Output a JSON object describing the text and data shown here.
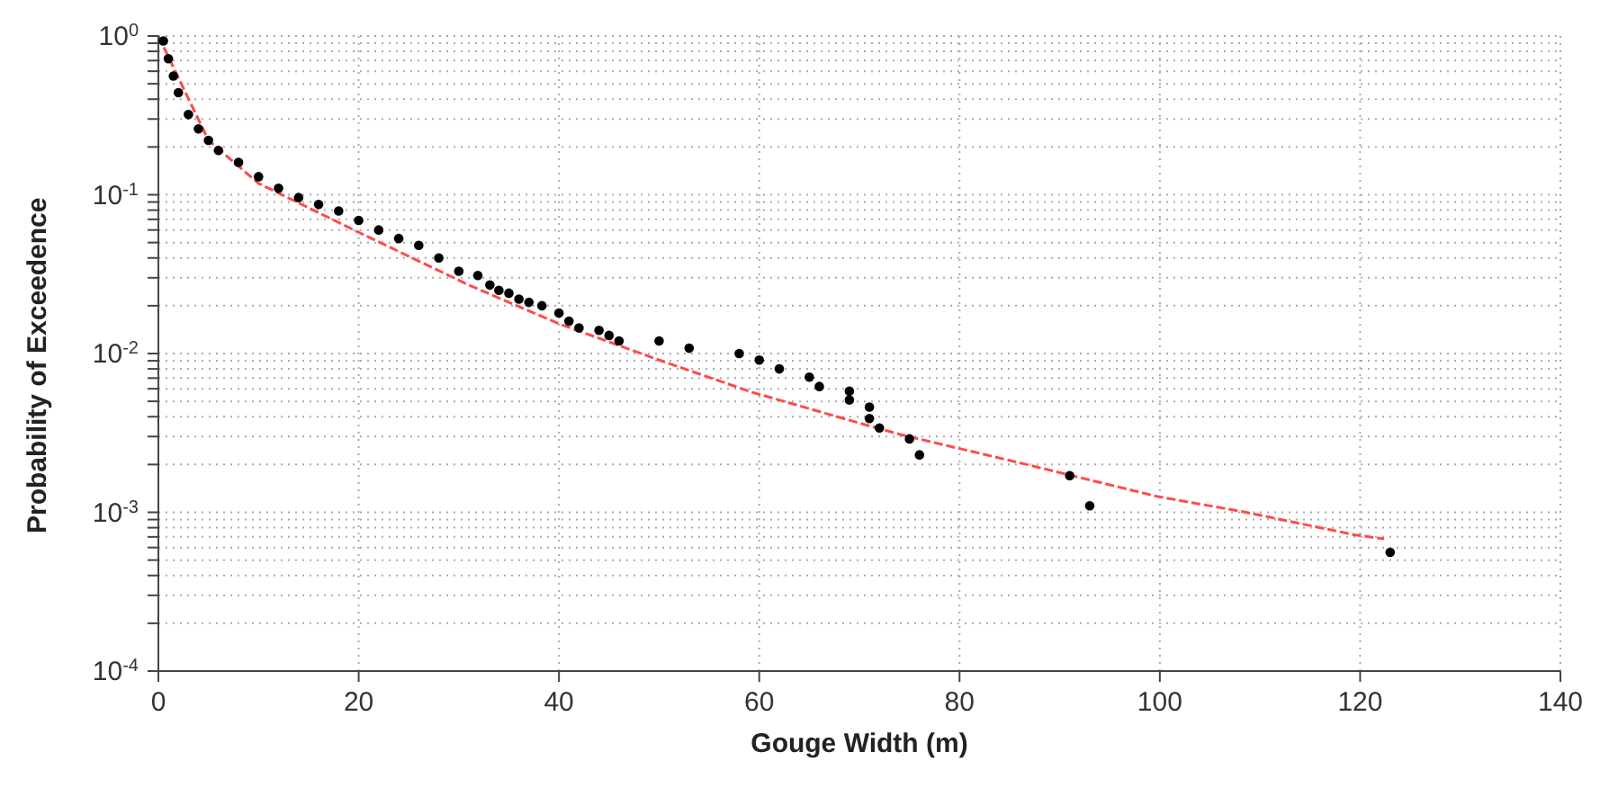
{
  "chart_data": {
    "type": "scatter",
    "xlabel": "Gouge Width (m)",
    "ylabel": "Probability of Exceedence",
    "xlim": [
      0,
      140
    ],
    "xticks": [
      0,
      20,
      40,
      60,
      80,
      100,
      120,
      140
    ],
    "ylim": [
      0.0001,
      1
    ],
    "log": "y",
    "grid": true,
    "marker": "circle",
    "yticks": [
      {
        "value": 0.0001,
        "label": "10$^{-4}$"
      },
      {
        "value": 0.0002,
        "label": null
      },
      {
        "value": 0.0003,
        "label": null
      },
      {
        "value": 0.0004,
        "label": null
      },
      {
        "value": 0.0005,
        "label": null
      },
      {
        "value": 0.0006,
        "label": null
      },
      {
        "value": 0.0007,
        "label": null
      },
      {
        "value": 0.0008,
        "label": null
      },
      {
        "value": 0.0009,
        "label": null
      },
      {
        "value": 0.001,
        "label": "10$^{-3}$"
      },
      {
        "value": 0.002,
        "label": null
      },
      {
        "value": 0.003,
        "label": null
      },
      {
        "value": 0.004,
        "label": null
      },
      {
        "value": 0.005,
        "label": null
      },
      {
        "value": 0.006,
        "label": null
      },
      {
        "value": 0.007,
        "label": null
      },
      {
        "value": 0.008,
        "label": null
      },
      {
        "value": 0.009,
        "label": null
      },
      {
        "value": 0.01,
        "label": "10$^{-2}$"
      },
      {
        "value": 0.02,
        "label": null
      },
      {
        "value": 0.03,
        "label": null
      },
      {
        "value": 0.04,
        "label": null
      },
      {
        "value": 0.05,
        "label": null
      },
      {
        "value": 0.06,
        "label": null
      },
      {
        "value": 0.07,
        "label": null
      },
      {
        "value": 0.08,
        "label": null
      },
      {
        "value": 0.09,
        "label": null
      },
      {
        "value": 0.1,
        "label": "10$^{-1}$"
      },
      {
        "value": 0.2,
        "label": null
      },
      {
        "value": 0.3,
        "label": null
      },
      {
        "value": 0.4,
        "label": null
      },
      {
        "value": 0.5,
        "label": null
      },
      {
        "value": 0.6,
        "label": null
      },
      {
        "value": 0.7,
        "label": null
      },
      {
        "value": 0.8,
        "label": null
      },
      {
        "value": 0.9,
        "label": null
      },
      {
        "value": 1,
        "label": "10$^{0}$"
      }
    ],
    "series": [
      {
        "type": "line",
        "color": "#ff4a4a",
        "line_style": "dashed",
        "marker": "none",
        "x": [
          0,
          5,
          10,
          20,
          31,
          40,
          50,
          59.3,
          71,
          74,
          86.7,
          99.7,
          108.6,
          119.5,
          122.4
        ],
        "values": [
          1.0,
          0.22,
          0.118,
          0.058,
          0.027,
          0.0154,
          0.0091,
          0.0057,
          0.0035,
          0.0031,
          0.002,
          0.00126,
          0.001,
          0.00072,
          0.00068
        ]
      },
      {
        "color": "#000000",
        "x": [
          0.5,
          1,
          1.5,
          2,
          3,
          4,
          5,
          6,
          8,
          10,
          12,
          14,
          16,
          18,
          20,
          22,
          24,
          26,
          28,
          30,
          31.9,
          33.1,
          34,
          35,
          36,
          37,
          38.3,
          40,
          41,
          42,
          44,
          45,
          46,
          50,
          53,
          58,
          60,
          62,
          65,
          66,
          69,
          69,
          71,
          71,
          72,
          75,
          76,
          91,
          93,
          123
        ],
        "values": [
          0.93,
          0.72,
          0.56,
          0.44,
          0.32,
          0.26,
          0.22,
          0.19,
          0.16,
          0.13,
          0.11,
          0.096,
          0.087,
          0.079,
          0.069,
          0.06,
          0.053,
          0.048,
          0.04,
          0.033,
          0.031,
          0.027,
          0.025,
          0.024,
          0.022,
          0.021,
          0.02,
          0.018,
          0.016,
          0.0145,
          0.014,
          0.013,
          0.012,
          0.012,
          0.0108,
          0.01,
          0.0091,
          0.008,
          0.0071,
          0.0062,
          0.0058,
          0.0051,
          0.0046,
          0.0039,
          0.0034,
          0.0029,
          0.0023,
          0.0017,
          0.0011,
          0.00056
        ]
      }
    ]
  }
}
